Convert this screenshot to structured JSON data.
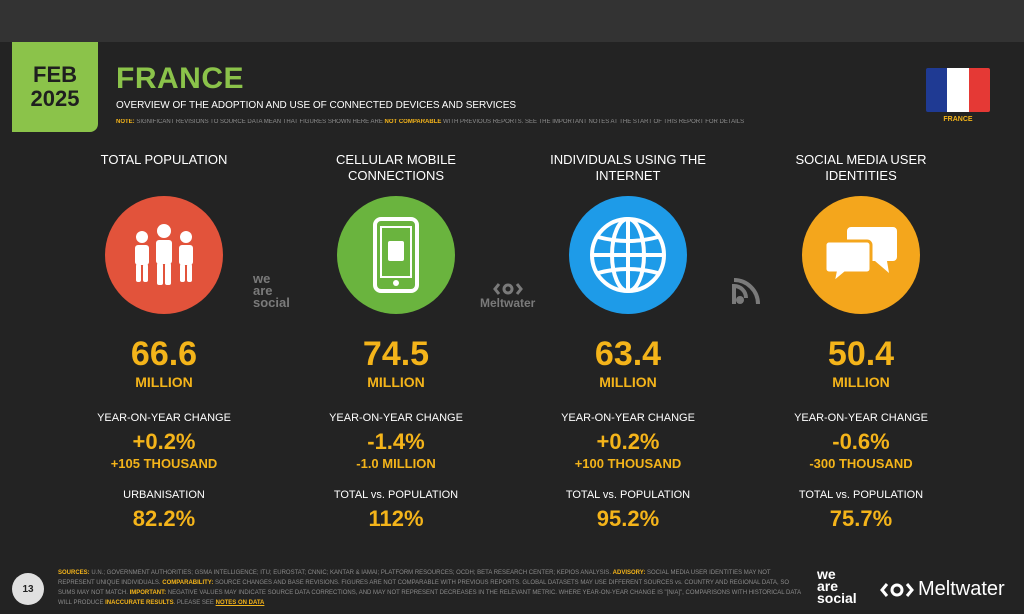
{
  "header": {
    "month": "FEB",
    "year": "2025",
    "title": "FRANCE",
    "subtitle": "OVERVIEW OF THE ADOPTION AND USE OF CONNECTED DEVICES AND SERVICES",
    "note_label": "NOTE:",
    "note_text_1": " SIGNIFICANT REVISIONS TO SOURCE DATA MEAN THAT FIGURES SHOWN HERE ARE ",
    "note_highlight": "NOT COMPARABLE",
    "note_text_2": " WITH PREVIOUS REPORTS. SEE THE IMPORTANT NOTES AT THE START OF THIS REPORT FOR DETAILS",
    "flag_label": "FRANCE",
    "flag_colors": [
      "#1f3a93",
      "#ffffff",
      "#e53935"
    ]
  },
  "stats": [
    {
      "label": "TOTAL POPULATION",
      "icon": "people-icon",
      "color": "#e2533b",
      "value": "66.6",
      "unit": "MILLION",
      "yoy_label": "YEAR-ON-YEAR CHANGE",
      "yoy_pct": "+0.2%",
      "yoy_abs": "+105 THOUSAND",
      "extra_label": "URBANISATION",
      "extra_value": "82.2%"
    },
    {
      "label": "CELLULAR MOBILE CONNECTIONS",
      "icon": "mobile-phone-icon",
      "color": "#6ab43e",
      "value": "74.5",
      "unit": "MILLION",
      "yoy_label": "YEAR-ON-YEAR CHANGE",
      "yoy_pct": "-1.4%",
      "yoy_abs": "-1.0 MILLION",
      "extra_label": "TOTAL vs. POPULATION",
      "extra_value": "112%"
    },
    {
      "label": "INDIVIDUALS USING THE INTERNET",
      "icon": "globe-icon",
      "color": "#1e9be8",
      "value": "63.4",
      "unit": "MILLION",
      "yoy_label": "YEAR-ON-YEAR CHANGE",
      "yoy_pct": "+0.2%",
      "yoy_abs": "+100 THOUSAND",
      "extra_label": "TOTAL vs. POPULATION",
      "extra_value": "95.2%"
    },
    {
      "label": "SOCIAL MEDIA USER IDENTITIES",
      "icon": "chat-bubbles-icon",
      "color": "#f4a61c",
      "value": "50.4",
      "unit": "MILLION",
      "yoy_label": "YEAR-ON-YEAR CHANGE",
      "yoy_pct": "-0.6%",
      "yoy_abs": "-300 THOUSAND",
      "extra_label": "TOTAL vs. POPULATION",
      "extra_value": "75.7%"
    }
  ],
  "watermarks": {
    "wearesocial": [
      "we",
      "are",
      "social"
    ],
    "meltwater": "Meltwater"
  },
  "footer": {
    "page_number": "13",
    "sources_label": "SOURCES:",
    "sources_text": " U.N.; GOVERNMENT AUTHORITIES; GSMA INTELLIGENCE; ITU; EUROSTAT; CNNIC; KANTAR & IAMAI; PLATFORM RESOURCES; OCDH; BETA RESEARCH CENTER; KEPIOS ANALYSIS. ",
    "advisory_label": "ADVISORY:",
    "advisory_text": " SOCIAL MEDIA USER IDENTITIES MAY NOT REPRESENT UNIQUE INDIVIDUALS. ",
    "comparability_label": "COMPARABILITY:",
    "comparability_text": " SOURCE CHANGES AND BASE REVISIONS. FIGURES ARE NOT COMPARABLE WITH PREVIOUS REPORTS. GLOBAL DATASETS MAY USE DIFFERENT SOURCES vs. COUNTRY AND REGIONAL DATA, SO SUMS MAY NOT MATCH. ",
    "important_label": "IMPORTANT:",
    "important_text": " NEGATIVE VALUES MAY INDICATE SOURCE DATA CORRECTIONS, AND MAY NOT REPRESENT DECREASES IN THE RELEVANT METRIC. WHERE YEAR-ON-YEAR CHANGE IS \"[N/A]\", COMPARISONS WITH HISTORICAL DATA WILL PRODUCE ",
    "inaccurate": "INACCURATE RESULTS",
    "tail_text": ". PLEASE SEE ",
    "notes_link": "NOTES ON DATA",
    "logo_wearesocial": [
      "we",
      "are",
      "social"
    ],
    "logo_meltwater": "Meltwater"
  }
}
